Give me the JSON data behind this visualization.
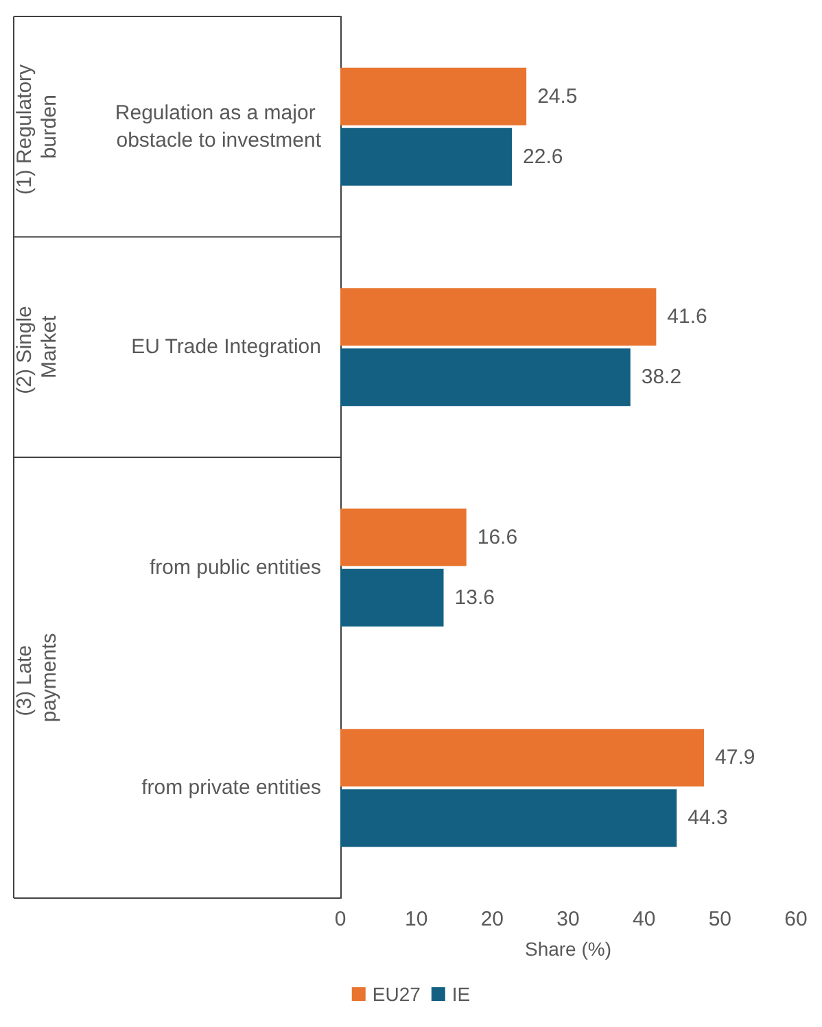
{
  "chart_data": {
    "type": "bar",
    "orientation": "horizontal",
    "xlabel": "Share (%)",
    "categories": [
      "Regulation as a major obstacle to investment",
      "EU Trade Integration",
      "from public entities",
      "from private entities"
    ],
    "series": [
      {
        "name": "EU27",
        "color": "#e8742f",
        "values": [
          24.5,
          41.6,
          16.6,
          47.9
        ]
      },
      {
        "name": "IE",
        "color": "#136082",
        "values": [
          22.6,
          38.2,
          13.6,
          44.3
        ]
      }
    ],
    "xlim": [
      0,
      60
    ],
    "xticks": [
      0,
      10,
      20,
      30,
      40,
      50,
      60
    ],
    "data_labels": true,
    "grid": false,
    "legend": "bottom",
    "annotations": [
      "(1) Regulatory burden",
      "(2) Single Market",
      "(3) Late payments"
    ]
  }
}
